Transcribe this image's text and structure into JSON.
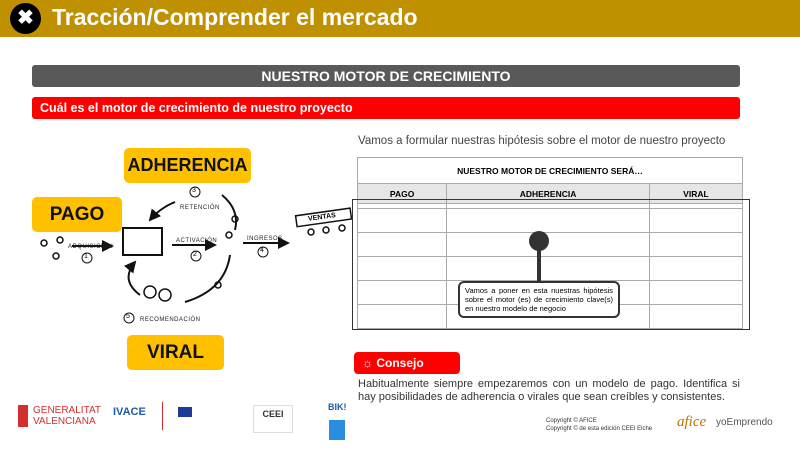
{
  "header": {
    "title": "Tracción/Comprender el mercado",
    "icon": "tools-icon",
    "color": "#bf9000"
  },
  "section_title": "NUESTRO MOTOR DE CRECIMIENTO",
  "question": "Cuál es el motor de crecimiento de nuestro proyecto",
  "diagram": {
    "pago": "PAGO",
    "adherencia": "ADHERENCIA",
    "viral": "VIRAL",
    "adquisicion": "ADQUISICIÓN",
    "activacion": "ACTIVACIÓN",
    "retencion": "RETENCIÓN",
    "ingresos": "INGRESOS",
    "recomendacion": "RECOMENDACIÓN",
    "ventas": "VENTAS",
    "n1": "1",
    "n2": "2",
    "n3": "3",
    "n4": "4",
    "n5": "5"
  },
  "intro": "Vamos a formular nuestras hipótesis sobre el motor de nuestro proyecto",
  "table": {
    "title": "NUESTRO MOTOR DE CRECIMIENTO SERÁ…",
    "columns": [
      "PAGO",
      "ADHERENCIA",
      "VIRAL"
    ]
  },
  "callout": "Vamos a poner en esta nuestras hipótesis sobre el motor (es) de crecimiento clave(s) en nuestro modelo de negocio",
  "tip": {
    "label": "Consejo",
    "icon": "lightbulb-icon",
    "text": "Habitualmente siempre empezaremos con un modelo de pago. Identifica si hay posibilidades de adherencia o virales que sean creíbles y consistentes."
  },
  "footer": {
    "logos": [
      "GENERALITAT VALENCIANA",
      "IVACE",
      "CEEI",
      "BIK!"
    ],
    "gv1": "GENERALITAT",
    "gv2": "VALENCIANA",
    "ivace": "IVACE",
    "ceei": "CEEI",
    "bik": "BIK!",
    "copyright1": "Copyright ©  AFICE",
    "copyright2": "Copyright © de esta edición CEEI Elche",
    "afice": "afice",
    "yoemprendo": "yoEmprendo"
  }
}
